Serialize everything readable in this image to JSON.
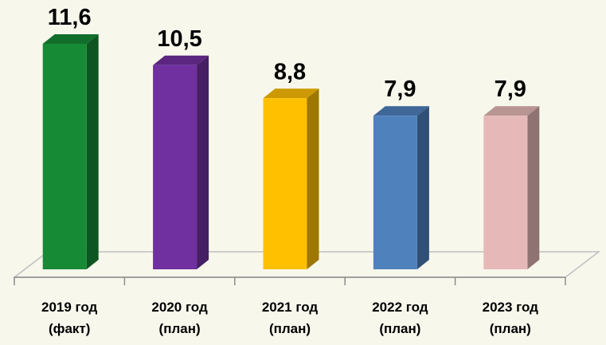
{
  "chart_data": {
    "type": "bar3d",
    "categories": [
      "2019 год\n(факт)",
      "2020 год\n(план)",
      "2021 год\n(план)",
      "2022 год\n(план)",
      "2023 год\n(план)"
    ],
    "values": [
      11.6,
      10.5,
      8.8,
      7.9,
      7.9
    ],
    "value_labels": [
      "11,6",
      "10,5",
      "8,8",
      "7,9",
      "7,9"
    ],
    "colors": [
      "#178a36",
      "#7030a0",
      "#ffc000",
      "#4f81bd",
      "#e6b9b8"
    ]
  }
}
